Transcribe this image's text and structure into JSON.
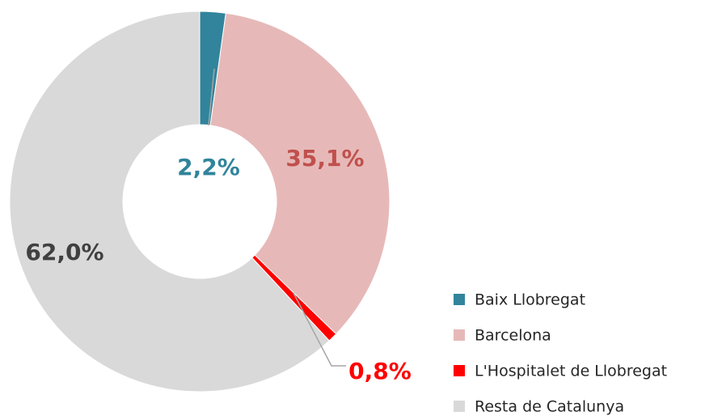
{
  "chart_data": {
    "type": "donut",
    "categories": [
      "Baix Llobregat",
      "Barcelona",
      "L'Hospitalet de Llobregat",
      "Resta de Catalunya"
    ],
    "values": [
      2.2,
      35.1,
      0.8,
      62.0
    ],
    "value_labels": [
      "2,2%",
      "35,1%",
      "0,8%",
      "62,0%"
    ],
    "colors": [
      "#31849b",
      "#e6b9b8",
      "#ff0000",
      "#d9d9d9"
    ],
    "label_colors": [
      "#31849b",
      "#c0504d",
      "#ff0000",
      "#404040"
    ],
    "legend": "right"
  }
}
